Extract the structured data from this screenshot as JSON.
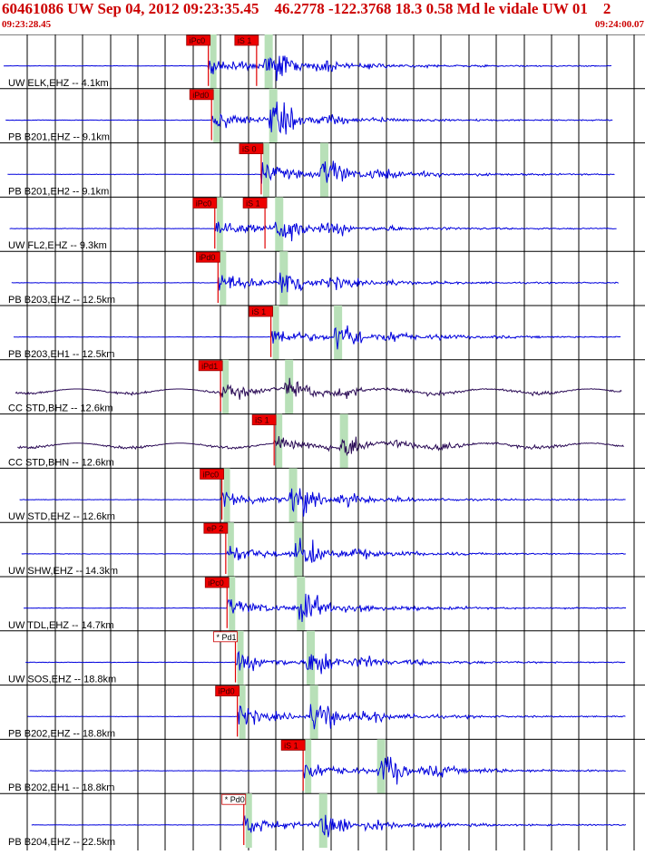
{
  "header": {
    "title": "60461086 UW Sep 04, 2012 09:23:35.45    46.2778 -122.3768 18.3 0.58 Md le vidale UW 01    2",
    "start_time": "09:23:28.45",
    "end_time": "09:24:00.07"
  },
  "colors": {
    "header_text": "#cc0000",
    "trace_uw_pb": "#0000dd",
    "trace_cc": "#2a0a55",
    "pick_box": "#ee0000",
    "window": "#b8e0b8",
    "grid": "#000000"
  },
  "traces": [
    {
      "label": "UW ELK,EHZ -- 4.1km",
      "picks": [
        {
          "text": "iPc0",
          "t": 0.323,
          "style": "red"
        },
        {
          "text": "iS 1",
          "t": 0.395,
          "style": "red"
        }
      ]
    },
    {
      "label": "PB B201,EHZ -- 9.1km",
      "picks": [
        {
          "text": "iPd0",
          "t": 0.328,
          "style": "red"
        }
      ]
    },
    {
      "label": "PB B201,EH2 -- 9.1km",
      "picks": [
        {
          "text": "iS 0",
          "t": 0.405,
          "style": "red"
        }
      ]
    },
    {
      "label": "UW FL2,EHZ -- 9.3km",
      "picks": [
        {
          "text": "iPc0",
          "t": 0.333,
          "style": "red"
        },
        {
          "text": "iS 1",
          "t": 0.408,
          "style": "red"
        }
      ]
    },
    {
      "label": "PB B203,EHZ -- 12.5km",
      "picks": [
        {
          "text": "iPd0",
          "t": 0.338,
          "style": "red"
        }
      ]
    },
    {
      "label": "PB B203,EH1 -- 12.5km",
      "picks": [
        {
          "text": "iS 1",
          "t": 0.42,
          "style": "red"
        }
      ]
    },
    {
      "label": "CC STD,BHZ -- 12.6km",
      "picks": [
        {
          "text": "iPd1",
          "t": 0.342,
          "style": "red"
        }
      ]
    },
    {
      "label": "CC STD,BHN -- 12.6km",
      "picks": [
        {
          "text": "iS 1",
          "t": 0.425,
          "style": "red"
        }
      ]
    },
    {
      "label": "UW STD,EHZ -- 12.6km",
      "picks": [
        {
          "text": "iPc0",
          "t": 0.344,
          "style": "red"
        }
      ]
    },
    {
      "label": "UW SHW,EHZ -- 14.3km",
      "picks": [
        {
          "text": "eP 2",
          "t": 0.35,
          "style": "red"
        }
      ]
    },
    {
      "label": "UW TDL,EHZ -- 14.7km",
      "picks": [
        {
          "text": "iPc0",
          "t": 0.352,
          "style": "red"
        }
      ]
    },
    {
      "label": "UW SOS,EHZ -- 18.8km",
      "picks": [
        {
          "text": "* Pd1",
          "t": 0.365,
          "style": "white"
        }
      ]
    },
    {
      "label": "PB B202,EHZ -- 18.8km",
      "picks": [
        {
          "text": "iPd0",
          "t": 0.368,
          "style": "red"
        }
      ]
    },
    {
      "label": "PB B202,EH1 -- 18.8km",
      "picks": [
        {
          "text": "iS 1",
          "t": 0.47,
          "style": "red"
        }
      ]
    },
    {
      "label": "PB B204,EHZ -- 22.5km",
      "picks": [
        {
          "text": "* Pd0",
          "t": 0.378,
          "style": "white"
        }
      ]
    }
  ]
}
